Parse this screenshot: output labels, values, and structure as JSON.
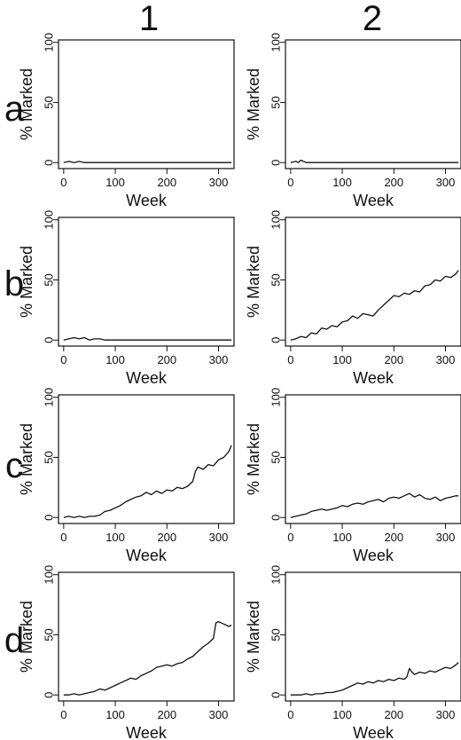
{
  "column_labels": [
    "1",
    "2"
  ],
  "row_labels": [
    "a",
    "b",
    "c",
    "d"
  ],
  "chart_data": [
    {
      "type": "line",
      "panel": "a1",
      "xlabel": "Week",
      "ylabel": "% Marked",
      "xlim": [
        -10,
        330
      ],
      "ylim": [
        -5,
        102
      ],
      "xticks": [
        0,
        100,
        200,
        300
      ],
      "yticks": [
        0,
        50,
        100
      ],
      "x": [
        0,
        10,
        20,
        30,
        40,
        60,
        100,
        200,
        325
      ],
      "y": [
        0,
        1,
        0,
        1,
        0,
        0,
        0,
        0,
        0
      ]
    },
    {
      "type": "line",
      "panel": "a2",
      "xlabel": "Week",
      "ylabel": "% Marked",
      "xlim": [
        -10,
        330
      ],
      "ylim": [
        -5,
        102
      ],
      "xticks": [
        0,
        100,
        200,
        300
      ],
      "yticks": [
        0,
        50,
        100
      ],
      "x": [
        0,
        10,
        15,
        20,
        25,
        30,
        40,
        100,
        200,
        325
      ],
      "y": [
        0,
        1,
        0,
        2,
        1,
        0,
        0,
        0,
        0,
        0
      ]
    },
    {
      "type": "line",
      "panel": "b1",
      "xlabel": "Week",
      "ylabel": "% Marked",
      "xlim": [
        -10,
        330
      ],
      "ylim": [
        -5,
        102
      ],
      "xticks": [
        0,
        100,
        200,
        300
      ],
      "yticks": [
        0,
        50,
        100
      ],
      "x": [
        0,
        10,
        20,
        30,
        40,
        50,
        60,
        70,
        80,
        100,
        200,
        325
      ],
      "y": [
        0,
        1,
        2,
        1,
        2,
        0,
        1,
        1,
        0,
        0,
        0,
        0
      ]
    },
    {
      "type": "line",
      "panel": "b2",
      "xlabel": "Week",
      "ylabel": "% Marked",
      "xlim": [
        -10,
        330
      ],
      "ylim": [
        -5,
        102
      ],
      "xticks": [
        0,
        100,
        200,
        300
      ],
      "yticks": [
        0,
        50,
        100
      ],
      "x": [
        0,
        10,
        20,
        30,
        40,
        50,
        60,
        70,
        80,
        90,
        100,
        110,
        120,
        130,
        140,
        150,
        160,
        170,
        180,
        190,
        200,
        210,
        220,
        230,
        240,
        250,
        260,
        270,
        280,
        290,
        300,
        310,
        320,
        325
      ],
      "y": [
        0,
        1,
        3,
        2,
        6,
        5,
        10,
        9,
        12,
        11,
        15,
        16,
        20,
        18,
        22,
        21,
        20,
        25,
        29,
        33,
        37,
        36,
        39,
        38,
        41,
        40,
        45,
        46,
        50,
        49,
        53,
        52,
        55,
        58
      ]
    },
    {
      "type": "line",
      "panel": "c1",
      "xlabel": "Week",
      "ylabel": "% Marked",
      "xlim": [
        -10,
        330
      ],
      "ylim": [
        -5,
        102
      ],
      "xticks": [
        0,
        100,
        200,
        300
      ],
      "yticks": [
        0,
        50,
        100
      ],
      "x": [
        0,
        10,
        20,
        30,
        40,
        50,
        60,
        70,
        80,
        90,
        100,
        110,
        120,
        130,
        140,
        150,
        160,
        170,
        180,
        190,
        200,
        210,
        220,
        230,
        240,
        250,
        255,
        260,
        270,
        280,
        290,
        300,
        310,
        320,
        325
      ],
      "y": [
        0,
        1,
        0,
        1,
        0,
        1,
        1,
        2,
        5,
        6,
        8,
        10,
        13,
        15,
        17,
        18,
        21,
        19,
        22,
        20,
        23,
        22,
        25,
        24,
        26,
        30,
        38,
        42,
        40,
        44,
        43,
        48,
        50,
        55,
        60
      ]
    },
    {
      "type": "line",
      "panel": "c2",
      "xlabel": "Week",
      "ylabel": "% Marked",
      "xlim": [
        -10,
        330
      ],
      "ylim": [
        -5,
        102
      ],
      "xticks": [
        0,
        100,
        200,
        300
      ],
      "yticks": [
        0,
        50,
        100
      ],
      "x": [
        0,
        10,
        20,
        30,
        40,
        50,
        60,
        70,
        80,
        90,
        100,
        110,
        120,
        130,
        140,
        150,
        160,
        170,
        180,
        190,
        200,
        210,
        220,
        230,
        240,
        250,
        260,
        270,
        280,
        290,
        300,
        310,
        320,
        325
      ],
      "y": [
        0,
        1,
        2,
        3,
        5,
        6,
        7,
        6,
        7,
        8,
        10,
        9,
        11,
        12,
        11,
        13,
        14,
        15,
        13,
        16,
        17,
        16,
        18,
        20,
        17,
        19,
        16,
        15,
        17,
        14,
        16,
        17,
        18,
        18
      ]
    },
    {
      "type": "line",
      "panel": "d1",
      "xlabel": "Week",
      "ylabel": "% Marked",
      "xlim": [
        -10,
        330
      ],
      "ylim": [
        -5,
        102
      ],
      "xticks": [
        0,
        100,
        200,
        300
      ],
      "yticks": [
        0,
        50,
        100
      ],
      "x": [
        0,
        10,
        20,
        30,
        40,
        50,
        60,
        70,
        80,
        90,
        100,
        110,
        120,
        130,
        140,
        150,
        160,
        170,
        180,
        190,
        200,
        210,
        220,
        230,
        240,
        250,
        260,
        270,
        280,
        290,
        295,
        300,
        310,
        320,
        325
      ],
      "y": [
        0,
        0,
        1,
        0,
        1,
        2,
        3,
        5,
        4,
        6,
        8,
        10,
        12,
        14,
        13,
        16,
        18,
        20,
        23,
        24,
        25,
        24,
        26,
        27,
        30,
        32,
        36,
        40,
        43,
        47,
        60,
        61,
        59,
        57,
        58
      ]
    },
    {
      "type": "line",
      "panel": "d2",
      "xlabel": "Week",
      "ylabel": "% Marked",
      "xlim": [
        -10,
        330
      ],
      "ylim": [
        -5,
        102
      ],
      "xticks": [
        0,
        100,
        200,
        300
      ],
      "yticks": [
        0,
        50,
        100
      ],
      "x": [
        0,
        10,
        20,
        30,
        40,
        50,
        60,
        70,
        80,
        90,
        100,
        110,
        120,
        130,
        140,
        150,
        160,
        170,
        180,
        190,
        200,
        210,
        220,
        225,
        230,
        235,
        240,
        250,
        260,
        270,
        280,
        290,
        300,
        310,
        320,
        325
      ],
      "y": [
        0,
        0,
        0,
        1,
        0,
        1,
        1,
        2,
        2,
        3,
        4,
        6,
        8,
        10,
        9,
        11,
        10,
        12,
        11,
        13,
        12,
        14,
        13,
        15,
        22,
        19,
        17,
        19,
        18,
        20,
        19,
        21,
        23,
        22,
        25,
        27
      ]
    }
  ]
}
